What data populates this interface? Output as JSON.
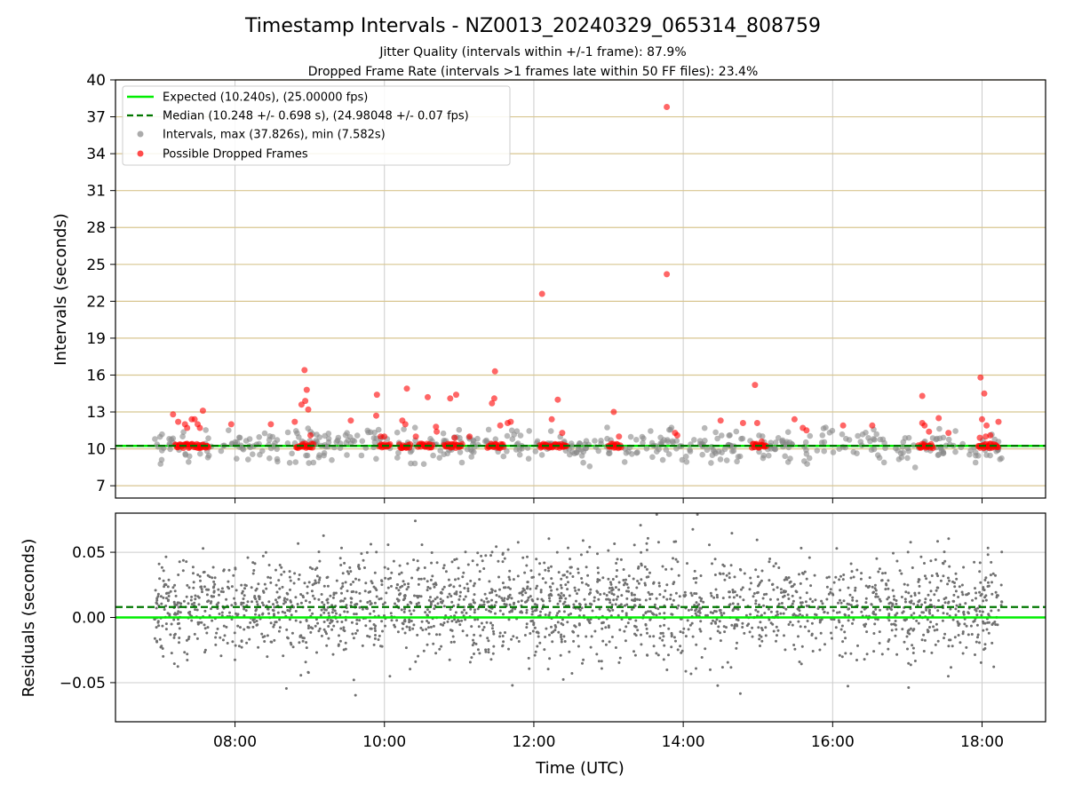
{
  "title": "Timestamp Intervals - NZ0013_20240329_065314_808759",
  "subtitle_1": "Jitter Quality (intervals within +/-1 frame): 87.9%",
  "subtitle_2": "Dropped Frame Rate (intervals >1 frames late within 50 FF files): 23.4%",
  "colors": {
    "expected": "#00ee00",
    "median": "#007700",
    "intervals": "#888888",
    "dropped": "#ff0000",
    "hgrid_top": "#d8c690",
    "grid": "#cccccc",
    "residual_points": "#707070"
  },
  "chart_data": [
    {
      "type": "scatter",
      "panel": "top",
      "ylabel": "Intervals (seconds)",
      "ylim": [
        6,
        40
      ],
      "yticks": [
        7,
        10,
        13,
        16,
        19,
        22,
        25,
        28,
        31,
        34,
        37,
        40
      ],
      "xlim": [
        6.4,
        18.85
      ],
      "xticks": [
        "08:00",
        "10:00",
        "12:00",
        "14:00",
        "16:00",
        "18:00"
      ],
      "legend_position": "top-left",
      "expected_value": 10.24,
      "median_value": 10.248,
      "legend": [
        {
          "label": "Expected (10.240s), (25.00000 fps)",
          "kind": "solid-line"
        },
        {
          "label": "Median (10.248 +/- 0.698 s), (24.98048 +/- 0.07 fps)",
          "kind": "dashed-line"
        },
        {
          "label": "Intervals, max (37.826s), min (7.582s)",
          "kind": "gray-dot"
        },
        {
          "label": "Possible Dropped Frames",
          "kind": "red-dot"
        }
      ],
      "series": [
        {
          "name": "Possible Dropped Frames",
          "points": [
            [
              7.17,
              12.8
            ],
            [
              7.24,
              12.2
            ],
            [
              7.33,
              12.0
            ],
            [
              7.36,
              11.7
            ],
            [
              7.42,
              12.4
            ],
            [
              7.46,
              12.4
            ],
            [
              7.5,
              12.0
            ],
            [
              7.53,
              11.7
            ],
            [
              7.57,
              13.1
            ],
            [
              7.95,
              12.0
            ],
            [
              8.48,
              12.0
            ],
            [
              8.8,
              12.2
            ],
            [
              8.89,
              13.6
            ],
            [
              8.93,
              16.4
            ],
            [
              8.94,
              13.9
            ],
            [
              8.96,
              14.8
            ],
            [
              8.98,
              13.2
            ],
            [
              9.01,
              11.1
            ],
            [
              9.55,
              12.3
            ],
            [
              9.89,
              12.7
            ],
            [
              9.9,
              14.4
            ],
            [
              9.95,
              11.0
            ],
            [
              10.0,
              11.0
            ],
            [
              10.24,
              12.3
            ],
            [
              10.28,
              12.0
            ],
            [
              10.3,
              14.9
            ],
            [
              10.42,
              11.0
            ],
            [
              10.58,
              14.2
            ],
            [
              10.69,
              11.8
            ],
            [
              10.7,
              11.4
            ],
            [
              10.88,
              14.1
            ],
            [
              10.96,
              14.4
            ],
            [
              10.94,
              10.9
            ],
            [
              11.14,
              11.0
            ],
            [
              11.44,
              13.7
            ],
            [
              11.47,
              14.1
            ],
            [
              11.48,
              16.3
            ],
            [
              11.55,
              11.9
            ],
            [
              11.65,
              12.1
            ],
            [
              11.69,
              12.2
            ],
            [
              12.11,
              22.6
            ],
            [
              12.24,
              12.4
            ],
            [
              12.32,
              14.0
            ],
            [
              12.38,
              11.3
            ],
            [
              13.07,
              13.0
            ],
            [
              13.14,
              11.0
            ],
            [
              13.78,
              37.8
            ],
            [
              13.78,
              24.2
            ],
            [
              13.89,
              11.3
            ],
            [
              13.92,
              11.1
            ],
            [
              14.5,
              12.3
            ],
            [
              14.8,
              12.1
            ],
            [
              14.96,
              15.2
            ],
            [
              14.99,
              12.1
            ],
            [
              15.05,
              10.6
            ],
            [
              15.49,
              12.4
            ],
            [
              15.6,
              11.7
            ],
            [
              15.65,
              11.5
            ],
            [
              16.14,
              11.9
            ],
            [
              16.53,
              11.9
            ],
            [
              17.2,
              14.3
            ],
            [
              17.2,
              12.1
            ],
            [
              17.23,
              11.9
            ],
            [
              17.29,
              11.4
            ],
            [
              17.42,
              12.5
            ],
            [
              17.55,
              11.3
            ],
            [
              17.98,
              15.8
            ],
            [
              18.03,
              14.5
            ],
            [
              18.0,
              12.4
            ],
            [
              18.06,
              11.9
            ],
            [
              18.22,
              12.2
            ],
            [
              18.11,
              11.1
            ],
            [
              18.05,
              11.0
            ],
            [
              17.97,
              10.9
            ]
          ],
          "bands": [
            [
              7.2,
              7.65
            ],
            [
              8.82,
              9.05
            ],
            [
              9.93,
              10.08
            ],
            [
              10.2,
              10.35
            ],
            [
              10.45,
              10.65
            ],
            [
              10.8,
              11.05
            ],
            [
              11.38,
              11.6
            ],
            [
              12.08,
              12.45
            ],
            [
              13.0,
              13.18
            ],
            [
              14.92,
              15.12
            ],
            [
              17.15,
              17.35
            ],
            [
              17.95,
              18.22
            ]
          ]
        }
      ]
    },
    {
      "type": "scatter",
      "panel": "bottom",
      "ylabel": "Residuals (seconds)",
      "xlabel": "Time (UTC)",
      "ylim": [
        -0.08,
        0.08
      ],
      "yticks": [
        -0.05,
        0.0,
        0.05
      ],
      "ytick_labels": [
        "−0.05",
        "0.00",
        "0.05"
      ],
      "xlim": [
        6.4,
        18.85
      ],
      "xticks": [
        "08:00",
        "10:00",
        "12:00",
        "14:00",
        "16:00",
        "18:00"
      ],
      "expected_residual": 0.0,
      "median_residual": 0.008,
      "series": [
        {
          "name": "Residuals",
          "x_range": [
            6.92,
            18.27
          ],
          "center": 0.008,
          "spread": 0.02
        }
      ]
    }
  ]
}
